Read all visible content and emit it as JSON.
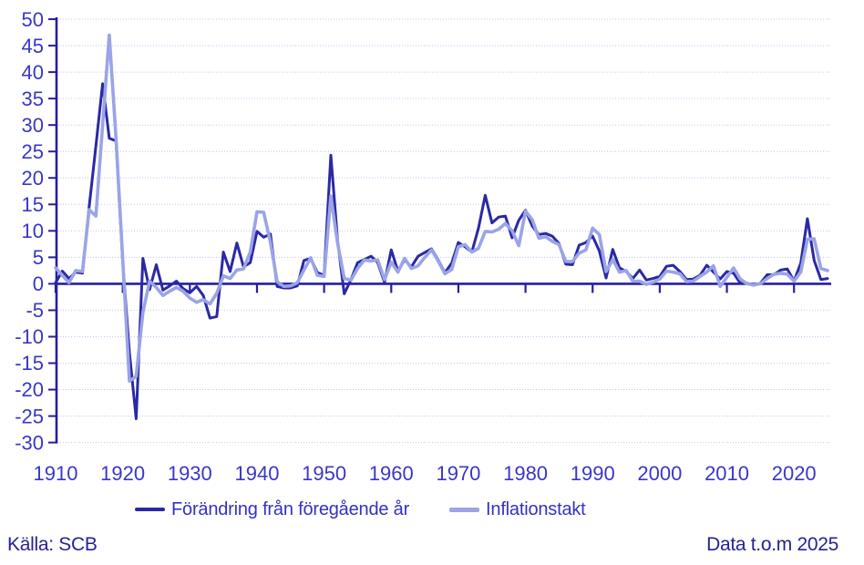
{
  "footer": {
    "source": "Källa: SCB",
    "coverage": "Data t.o.m 2025"
  },
  "legend": {
    "items": [
      {
        "label": "Förändring från föregående år",
        "color": "#2b28a5",
        "thickness": 4
      },
      {
        "label": "Inflationstakt",
        "color": "#9aa4e6",
        "thickness": 5
      }
    ]
  },
  "colors": {
    "background": "#ffffff",
    "dark_line": "#2b28a5",
    "light_line": "#9aa4e6",
    "grid": "#bfc7ee",
    "axis": "#241fa0",
    "tick_label": "#3a36c9",
    "legend_text": "#3531bf",
    "note_text": "#272295"
  },
  "chart_data": {
    "type": "line",
    "title": "",
    "xlabel": "",
    "ylabel": "",
    "grid": "horizontal-dotted",
    "legend_position": "bottom",
    "ylim": [
      -30,
      50
    ],
    "ytick_step": 5,
    "x_start": 1910,
    "x_end": 2025,
    "xticks": [
      1910,
      1920,
      1930,
      1940,
      1950,
      1960,
      1970,
      1980,
      1990,
      2000,
      2010,
      2020
    ],
    "series": [
      {
        "name": "Förändring från föregående år",
        "color": "#2b28a5",
        "width": 3,
        "values": [
          0.2,
          2.4,
          1.0,
          2.2,
          2.0,
          14.5,
          26.0,
          37.8,
          27.5,
          27.0,
          4.0,
          -13.0,
          -25.5,
          4.8,
          -1.1,
          3.6,
          -1.2,
          -0.4,
          0.5,
          -0.9,
          -1.7,
          -0.5,
          -2.2,
          -6.5,
          -6.2,
          6.0,
          2.3,
          7.7,
          3.2,
          4.0,
          9.9,
          8.8,
          9.4,
          -0.5,
          -0.8,
          -0.8,
          -0.4,
          4.4,
          4.8,
          2.1,
          1.6,
          24.3,
          8.2,
          -1.9,
          0.8,
          4.0,
          4.6,
          5.2,
          4.0,
          0.3,
          6.4,
          2.4,
          4.5,
          3.2,
          5.2,
          5.9,
          6.6,
          4.5,
          2.1,
          3.9,
          7.8,
          7.0,
          6.0,
          10.5,
          16.7,
          11.5,
          12.6,
          12.8,
          8.7,
          12.0,
          13.9,
          10.9,
          9.3,
          9.5,
          9.0,
          7.6,
          3.7,
          3.6,
          7.3,
          7.8,
          9.0,
          6.2,
          1.1,
          6.5,
          3.0,
          2.3,
          1.0,
          2.6,
          0.7,
          1.0,
          1.4,
          3.3,
          3.5,
          2.3,
          0.8,
          0.9,
          1.6,
          3.5,
          2.2,
          0.9,
          2.3,
          2.0,
          0.1,
          0.1,
          -0.3,
          0.1,
          1.7,
          1.7,
          2.6,
          2.8,
          0.5,
          3.9,
          12.3,
          4.4,
          0.8,
          1.0
        ]
      },
      {
        "name": "Inflationstakt",
        "color": "#9aa4e6",
        "width": 3.6,
        "values": [
          3.0,
          1.6,
          0.2,
          2.5,
          2.3,
          14.0,
          12.8,
          30.0,
          47.0,
          27.5,
          4.5,
          -18.4,
          -17.5,
          -5.4,
          0.5,
          -0.7,
          -2.2,
          -1.4,
          -0.7,
          -1.4,
          -2.7,
          -3.5,
          -3.0,
          -3.8,
          -1.8,
          1.5,
          1.0,
          2.6,
          2.8,
          6.0,
          13.6,
          13.5,
          7.9,
          0.4,
          -0.5,
          -0.4,
          0.2,
          2.6,
          4.9,
          1.6,
          1.4,
          16.6,
          7.7,
          1.0,
          0.7,
          2.9,
          4.5,
          4.3,
          4.5,
          0.8,
          4.1,
          2.2,
          4.8,
          2.9,
          3.4,
          5.0,
          6.4,
          4.3,
          1.9,
          2.7,
          7.0,
          7.4,
          6.0,
          6.7,
          9.9,
          9.8,
          10.3,
          11.4,
          10.0,
          7.2,
          13.7,
          12.1,
          8.6,
          8.9,
          8.0,
          7.4,
          4.2,
          4.2,
          5.8,
          6.4,
          10.5,
          9.3,
          2.3,
          4.6,
          2.2,
          2.5,
          0.5,
          0.5,
          -0.1,
          0.3,
          0.9,
          2.4,
          2.2,
          1.9,
          0.4,
          0.5,
          1.4,
          2.2,
          3.4,
          -0.5,
          1.2,
          3.0,
          0.9,
          0.0,
          -0.2,
          0.0,
          1.0,
          1.8,
          2.0,
          1.8,
          0.5,
          2.2,
          8.4,
          8.5,
          2.9,
          2.5
        ]
      }
    ]
  }
}
